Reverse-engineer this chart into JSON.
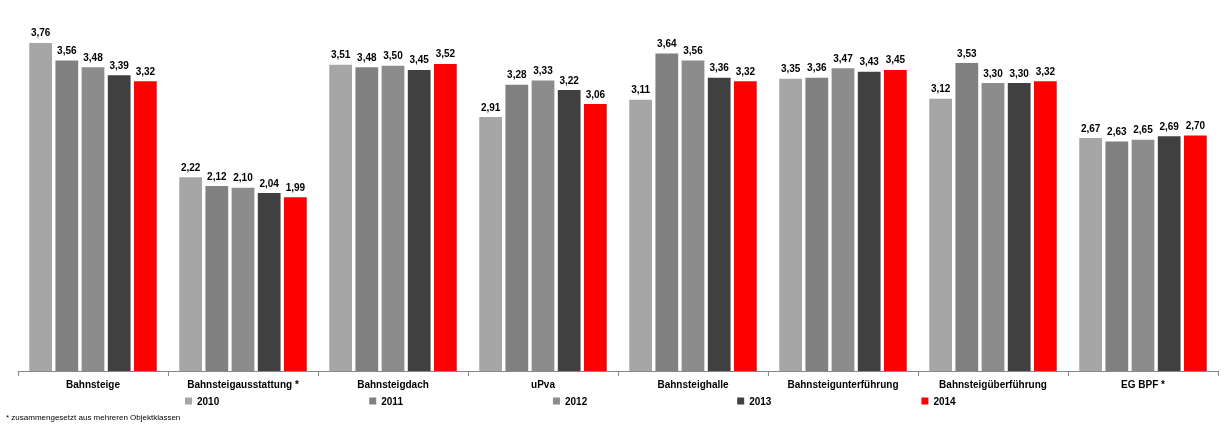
{
  "chart_data": {
    "type": "bar",
    "categories": [
      "Bahnsteige",
      "Bahnsteigausstattung *",
      "Bahnsteigdach",
      "uPva",
      "Bahnsteighalle",
      "Bahnsteigunterführung",
      "Bahnsteigüberführung",
      "EG BPF *"
    ],
    "series": [
      {
        "name": "2010",
        "color": "#a6a6a6",
        "values": [
          3.76,
          2.22,
          3.51,
          2.91,
          3.11,
          3.35,
          3.12,
          2.67
        ],
        "value_labels": [
          "3,76",
          "2,22",
          "3,51",
          "2,91",
          "3,11",
          "3,35",
          "3,12",
          "2,67"
        ]
      },
      {
        "name": "2011",
        "color": "#808080",
        "values": [
          3.56,
          2.12,
          3.48,
          3.28,
          3.64,
          3.36,
          3.53,
          2.63
        ],
        "value_labels": [
          "3,56",
          "2,12",
          "3,48",
          "3,28",
          "3,64",
          "3,36",
          "3,53",
          "2,63"
        ]
      },
      {
        "name": "2012",
        "color": "#8c8c8c",
        "values": [
          3.48,
          2.1,
          3.5,
          3.33,
          3.56,
          3.47,
          3.3,
          2.65
        ],
        "value_labels": [
          "3,48",
          "2,10",
          "3,50",
          "3,33",
          "3,56",
          "3,47",
          "3,30",
          "2,65"
        ]
      },
      {
        "name": "2013",
        "color": "#404040",
        "values": [
          3.39,
          2.04,
          3.45,
          3.22,
          3.36,
          3.43,
          3.3,
          2.69
        ],
        "value_labels": [
          "3,39",
          "2,04",
          "3,45",
          "3,22",
          "3,36",
          "3,43",
          "3,30",
          "2,69"
        ]
      },
      {
        "name": "2014",
        "color": "#ff0000",
        "values": [
          3.32,
          1.99,
          3.52,
          3.06,
          3.32,
          3.45,
          3.32,
          2.7
        ],
        "value_labels": [
          "3,32",
          "1,99",
          "3,52",
          "3,06",
          "3,32",
          "3,45",
          "3,32",
          "2,70"
        ]
      }
    ],
    "legend": "bottom",
    "annotations": [
      "* zusammengesetzt aus mehreren Objektklassen"
    ]
  }
}
